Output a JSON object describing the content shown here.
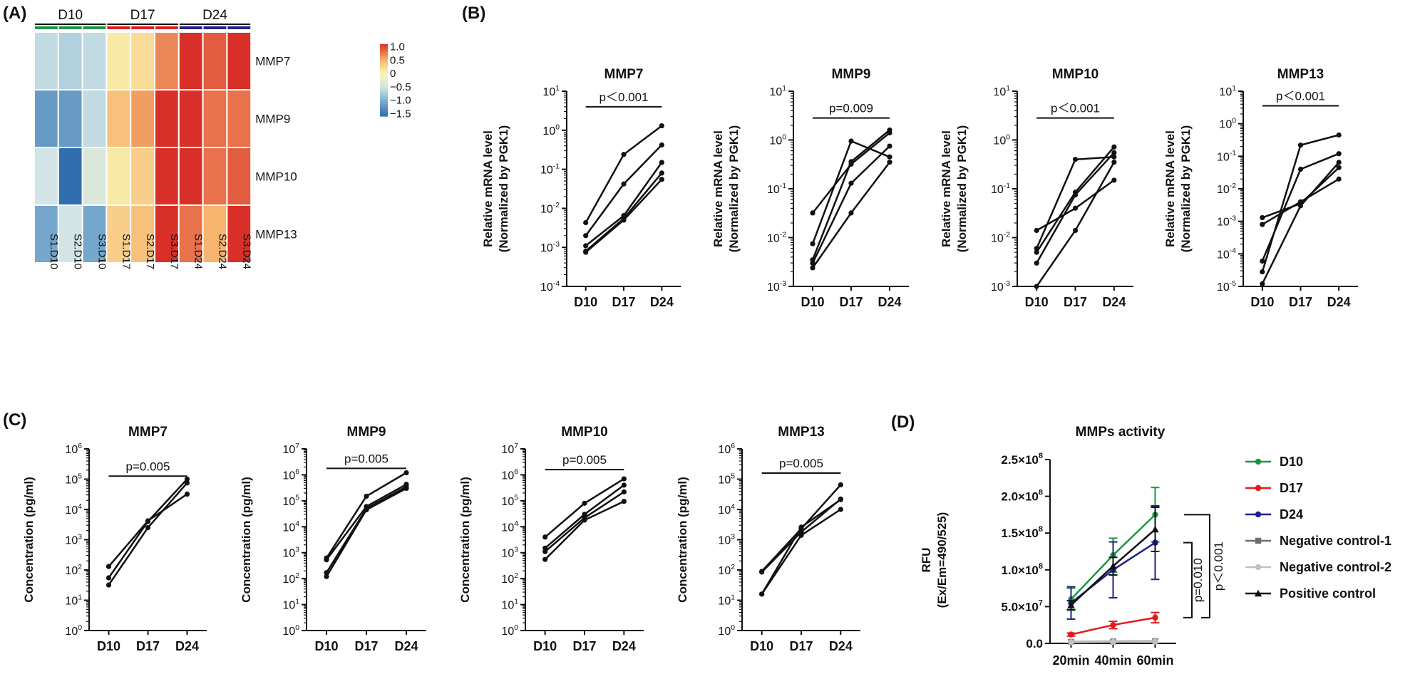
{
  "panel_labels": {
    "a": "(A)",
    "b": "(B)",
    "c": "(C)",
    "d": "(D)"
  },
  "chart_data": [
    {
      "panel": "A",
      "type": "heatmap",
      "group_labels": [
        "D10",
        "D17",
        "D24"
      ],
      "group_colors": [
        "#1a9641",
        "#e31a1c",
        "#1f1f8a"
      ],
      "columns": [
        "S1.D10",
        "S2.D10",
        "S3.D10",
        "S1.D17",
        "S2.D17",
        "S3.D17",
        "S1.D24",
        "S2.D24",
        "S3.D24"
      ],
      "rows": [
        "MMP7",
        "MMP9",
        "MMP10",
        "MMP13"
      ],
      "values": [
        [
          -0.6,
          -0.7,
          -0.6,
          0.1,
          0.2,
          0.7,
          1.1,
          0.9,
          1.1
        ],
        [
          -1.2,
          -1.2,
          -0.6,
          0.4,
          0.6,
          1.1,
          1.1,
          0.8,
          0.8
        ],
        [
          -0.5,
          -1.6,
          -0.4,
          0.1,
          0.3,
          1.1,
          1.1,
          0.8,
          0.9
        ],
        [
          -1.1,
          -0.5,
          -1.1,
          0.3,
          0.4,
          1.1,
          0.8,
          0.5,
          1.1
        ]
      ],
      "color_range": [
        -1.6,
        1.1
      ],
      "colorbar_ticks": [
        {
          "v": 1.0,
          "label": "1.0"
        },
        {
          "v": 0.5,
          "label": "0.5"
        },
        {
          "v": 0,
          "label": "0"
        },
        {
          "v": -0.5,
          "label": "−0.5"
        },
        {
          "v": -1.0,
          "label": "−1.0"
        },
        {
          "v": -1.5,
          "label": "−1.5"
        }
      ]
    },
    {
      "panel": "B",
      "type": "line",
      "scale": "log",
      "title": "MMP7",
      "ylabel": [
        "Relative mRNA level",
        "(Normalized by PGK1)"
      ],
      "categories": [
        "D10",
        "D17",
        "D24"
      ],
      "ylim_exp": [
        -4,
        1
      ],
      "tick_labels": [
        {
          "e": 1,
          "t": "10",
          "s": "1"
        },
        {
          "e": 0,
          "t": "10",
          "s": "0"
        },
        {
          "e": -1,
          "t": "10",
          "s": "-1"
        },
        {
          "e": -2,
          "t": "10",
          "s": "-2"
        },
        {
          "e": -3,
          "t": "10",
          "s": "-3"
        },
        {
          "e": -4,
          "t": "10",
          "s": "-4"
        }
      ],
      "annotation": {
        "text": "p＜0.001",
        "y_exp": 0.6
      },
      "series": [
        [
          0.0043,
          0.24,
          1.3
        ],
        [
          0.002,
          0.042,
          0.42
        ],
        [
          0.0011,
          0.0065,
          0.15
        ],
        [
          0.0008,
          0.0055,
          0.08
        ],
        [
          0.00075,
          0.005,
          0.055
        ]
      ]
    },
    {
      "panel": "B",
      "type": "line",
      "scale": "log",
      "title": "MMP9",
      "ylabel": [
        "Relative mRNA level",
        "(Normalized by PGK1)"
      ],
      "categories": [
        "D10",
        "D17",
        "D24"
      ],
      "ylim_exp": [
        -3,
        1
      ],
      "tick_labels": [
        {
          "e": 1,
          "t": "10",
          "s": "1"
        },
        {
          "e": 0,
          "t": "10",
          "s": "0"
        },
        {
          "e": -1,
          "t": "10",
          "s": "-1"
        },
        {
          "e": -2,
          "t": "10",
          "s": "-2"
        },
        {
          "e": -3,
          "t": "10",
          "s": "-3"
        }
      ],
      "annotation": {
        "text": "p=0.009",
        "y_exp": 0.45
      },
      "series": [
        [
          0.032,
          0.32,
          1.4
        ],
        [
          0.0075,
          0.95,
          0.45
        ],
        [
          0.0035,
          0.36,
          1.6
        ],
        [
          0.003,
          0.13,
          0.75
        ],
        [
          0.0024,
          0.032,
          0.35
        ]
      ]
    },
    {
      "panel": "B",
      "type": "line",
      "scale": "log",
      "title": "MMP10",
      "ylabel": [
        "Relative mRNA level",
        "(Normalized by PGK1)"
      ],
      "categories": [
        "D10",
        "D17",
        "D24"
      ],
      "ylim_exp": [
        -3,
        1
      ],
      "tick_labels": [
        {
          "e": 1,
          "t": "10",
          "s": "1"
        },
        {
          "e": 0,
          "t": "10",
          "s": "0"
        },
        {
          "e": -1,
          "t": "10",
          "s": "-1"
        },
        {
          "e": -2,
          "t": "10",
          "s": "-2"
        },
        {
          "e": -3,
          "t": "10",
          "s": "-3"
        }
      ],
      "annotation": {
        "text": "p＜0.001",
        "y_exp": 0.45
      },
      "series": [
        [
          0.014,
          0.04,
          0.15
        ],
        [
          0.006,
          0.4,
          0.45
        ],
        [
          0.005,
          0.085,
          0.72
        ],
        [
          0.003,
          0.075,
          0.55
        ],
        [
          0.001,
          0.014,
          0.35
        ]
      ]
    },
    {
      "panel": "B",
      "type": "line",
      "scale": "log",
      "title": "MMP13",
      "ylabel": [
        "Relative mRNA level",
        "(Normalized by PGK1)"
      ],
      "categories": [
        "D10",
        "D17",
        "D24"
      ],
      "ylim_exp": [
        -5,
        1
      ],
      "tick_labels": [
        {
          "e": 1,
          "t": "10",
          "s": "1"
        },
        {
          "e": 0,
          "t": "10",
          "s": "0"
        },
        {
          "e": -1,
          "t": "10",
          "s": "-1"
        },
        {
          "e": -2,
          "t": "10",
          "s": "-2"
        },
        {
          "e": -3,
          "t": "10",
          "s": "-3"
        },
        {
          "e": -4,
          "t": "10",
          "s": "-4"
        },
        {
          "e": -5,
          "t": "10",
          "s": "-5"
        }
      ],
      "annotation": {
        "text": "p＜0.001",
        "y_exp": 0.55
      },
      "series": [
        [
          0.0013,
          0.0035,
          0.045
        ],
        [
          0.0008,
          0.004,
          0.02
        ],
        [
          6e-05,
          0.04,
          0.12
        ],
        [
          2.8e-05,
          0.22,
          0.45
        ],
        [
          1.2e-05,
          0.003,
          0.065
        ]
      ]
    },
    {
      "panel": "C",
      "type": "line",
      "scale": "log",
      "title": "MMP7",
      "ylabel": [
        "Concentration (pg/ml)"
      ],
      "categories": [
        "D10",
        "D17",
        "D24"
      ],
      "ylim_exp": [
        0,
        6
      ],
      "tick_labels": [
        {
          "e": 6,
          "t": "10",
          "s": "6"
        },
        {
          "e": 5,
          "t": "10",
          "s": "5"
        },
        {
          "e": 4,
          "t": "10",
          "s": "4"
        },
        {
          "e": 3,
          "t": "10",
          "s": "3"
        },
        {
          "e": 2,
          "t": "10",
          "s": "2"
        },
        {
          "e": 1,
          "t": "10",
          "s": "1"
        },
        {
          "e": 0,
          "t": "10",
          "s": "0"
        }
      ],
      "annotation": {
        "text": "p=0.005",
        "y_exp": 5.1
      },
      "series": [
        [
          130,
          4200,
          32000
        ],
        [
          55,
          4000,
          100000
        ],
        [
          32,
          2500,
          75000
        ]
      ]
    },
    {
      "panel": "C",
      "type": "line",
      "scale": "log",
      "title": "MMP9",
      "ylabel": [
        "Concentration (pg/ml)"
      ],
      "categories": [
        "D10",
        "D17",
        "D24"
      ],
      "ylim_exp": [
        0,
        7
      ],
      "tick_labels": [
        {
          "e": 7,
          "t": "10",
          "s": "7"
        },
        {
          "e": 6,
          "t": "10",
          "s": "6"
        },
        {
          "e": 5,
          "t": "10",
          "s": "5"
        },
        {
          "e": 4,
          "t": "10",
          "s": "4"
        },
        {
          "e": 3,
          "t": "10",
          "s": "3"
        },
        {
          "e": 2,
          "t": "10",
          "s": "2"
        },
        {
          "e": 1,
          "t": "10",
          "s": "1"
        },
        {
          "e": 0,
          "t": "10",
          "s": "0"
        }
      ],
      "annotation": {
        "text": "p=0.005",
        "y_exp": 6.25
      },
      "series": [
        [
          620,
          150000,
          1200000
        ],
        [
          530,
          60000,
          430000
        ],
        [
          170,
          50000,
          350000
        ],
        [
          120,
          45000,
          300000
        ]
      ]
    },
    {
      "panel": "C",
      "type": "line",
      "scale": "log",
      "title": "MMP10",
      "ylabel": [
        "Concentration (pg/ml)"
      ],
      "categories": [
        "D10",
        "D17",
        "D24"
      ],
      "ylim_exp": [
        0,
        7
      ],
      "tick_labels": [
        {
          "e": 7,
          "t": "10",
          "s": "7"
        },
        {
          "e": 6,
          "t": "10",
          "s": "6"
        },
        {
          "e": 5,
          "t": "10",
          "s": "5"
        },
        {
          "e": 4,
          "t": "10",
          "s": "4"
        },
        {
          "e": 3,
          "t": "10",
          "s": "3"
        },
        {
          "e": 2,
          "t": "10",
          "s": "2"
        },
        {
          "e": 1,
          "t": "10",
          "s": "1"
        },
        {
          "e": 0,
          "t": "10",
          "s": "0"
        }
      ],
      "annotation": {
        "text": "p=0.005",
        "y_exp": 6.2
      },
      "series": [
        [
          4000,
          80000,
          700000
        ],
        [
          1500,
          30000,
          400000
        ],
        [
          1100,
          22000,
          220000
        ],
        [
          550,
          18000,
          95000
        ]
      ]
    },
    {
      "panel": "C",
      "type": "line",
      "scale": "log",
      "title": "MMP13",
      "ylabel": [
        "Concentration (pg/ml)"
      ],
      "categories": [
        "D10",
        "D17",
        "D24"
      ],
      "ylim_exp": [
        0,
        6
      ],
      "tick_labels": [
        {
          "e": 6,
          "t": "10",
          "s": "6"
        },
        {
          "e": 5,
          "t": "10",
          "s": "5"
        },
        {
          "e": 4,
          "t": "10",
          "s": "4"
        },
        {
          "e": 3,
          "t": "10",
          "s": "3"
        },
        {
          "e": 2,
          "t": "10",
          "s": "2"
        },
        {
          "e": 1,
          "t": "10",
          "s": "1"
        },
        {
          "e": 0,
          "t": "10",
          "s": "0"
        }
      ],
      "annotation": {
        "text": "p=0.005",
        "y_exp": 5.2
      },
      "series": [
        [
          90,
          2300,
          65000
        ],
        [
          85,
          1800,
          22000
        ],
        [
          16,
          1400,
          10000
        ],
        [
          16,
          2600,
          21000
        ]
      ]
    },
    {
      "panel": "D",
      "type": "line",
      "title": "MMPs activity",
      "ylabel": [
        "RFU",
        "(Ex/Em=490/525)"
      ],
      "categories": [
        "20min",
        "40min",
        "60min"
      ],
      "ylim": [
        0,
        250000000
      ],
      "yticks": [
        {
          "v": 250000000,
          "label": "2.5×10",
          "sup": "8"
        },
        {
          "v": 200000000,
          "label": "2.0×10",
          "sup": "8"
        },
        {
          "v": 150000000,
          "label": "1.5×10",
          "sup": "8"
        },
        {
          "v": 100000000,
          "label": "1.0×10",
          "sup": "8"
        },
        {
          "v": 50000000,
          "label": "5.0×10",
          "sup": "7"
        },
        {
          "v": 0,
          "label": "0.0",
          "sup": ""
        }
      ],
      "series": [
        {
          "name": "D10",
          "color": "#1a9641",
          "marker": "circle",
          "values": [
            60000000,
            120000000,
            175000000
          ],
          "err": [
            15000000,
            23000000,
            37000000
          ]
        },
        {
          "name": "D17",
          "color": "#e31a1c",
          "marker": "circle",
          "values": [
            12000000,
            25000000,
            35000000
          ],
          "err": [
            2000000,
            5000000,
            7000000
          ]
        },
        {
          "name": "D24",
          "color": "#1f1f8a",
          "marker": "circle",
          "values": [
            55000000,
            100000000,
            137000000
          ],
          "err": [
            22000000,
            38000000,
            50000000
          ]
        },
        {
          "name": "Negative control-1",
          "color": "#6e6e6e",
          "marker": "square",
          "values": [
            2000000,
            2500000,
            3000000
          ],
          "err": [
            0,
            0,
            0
          ]
        },
        {
          "name": "Negative control-2",
          "color": "#c0c0c0",
          "marker": "circle",
          "values": [
            1500000,
            2000000,
            2500000
          ],
          "err": [
            0,
            0,
            0
          ]
        },
        {
          "name": "Positive control",
          "color": "#111111",
          "marker": "triangle",
          "values": [
            52000000,
            105000000,
            155000000
          ],
          "err": [
            6000000,
            12000000,
            30000000
          ]
        }
      ],
      "brackets": [
        {
          "text": "p=0.010",
          "from": 137000000,
          "to": 35000000
        },
        {
          "text": "p＜0.001",
          "from": 175000000,
          "to": 35000000
        }
      ]
    }
  ]
}
